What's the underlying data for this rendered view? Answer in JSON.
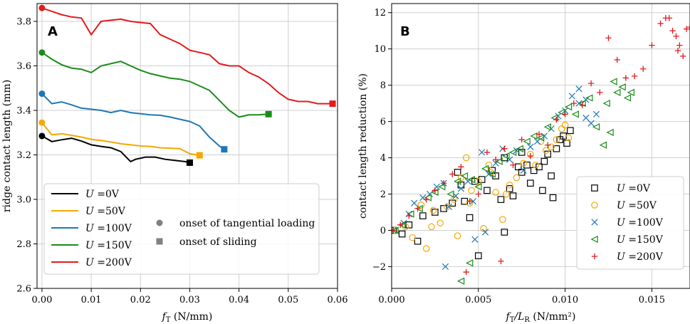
{
  "colors": {
    "0V": "#000000",
    "50V": "#f5a800",
    "100V": "#1f77b4",
    "150V": "#1a8c1a",
    "200V": "#e41a1c"
  },
  "chart_data": [
    {
      "type": "line",
      "panel_label": "A",
      "xlabel_main": "f",
      "xlabel_sub": "T",
      "xlabel_unit": " (N/mm)",
      "ylabel": "ridge contact length (mm)",
      "xlim": [
        -0.001,
        0.06
      ],
      "ylim": [
        2.6,
        3.88
      ],
      "xticks": [
        "0.00",
        "0.01",
        "0.02",
        "0.03",
        "0.04",
        "0.05",
        "0.06"
      ],
      "xtick_values": [
        0,
        0.01,
        0.02,
        0.03,
        0.04,
        0.05,
        0.06
      ],
      "yticks": [
        "2.6",
        "2.8",
        "3.0",
        "3.2",
        "3.4",
        "3.6",
        "3.8"
      ],
      "ytick_values": [
        2.6,
        2.8,
        3.0,
        3.2,
        3.4,
        3.6,
        3.8
      ],
      "legend": {
        "placement": "lower-left",
        "prefix": "U",
        "entries": [
          "=0V",
          "=50V",
          "=100V",
          "=150V",
          "=200V"
        ],
        "marker_entries": [
          "onset of tangential loading",
          "onset of sliding"
        ]
      },
      "series": [
        {
          "name": "U =0V",
          "key": "0V",
          "x": [
            0,
            0.002,
            0.004,
            0.006,
            0.008,
            0.01,
            0.012,
            0.014,
            0.016,
            0.018,
            0.019,
            0.021,
            0.023,
            0.025,
            0.027,
            0.029,
            0.03
          ],
          "y": [
            3.285,
            3.26,
            3.268,
            3.275,
            3.262,
            3.245,
            3.238,
            3.232,
            3.215,
            3.17,
            3.18,
            3.19,
            3.19,
            3.18,
            3.175,
            3.17,
            3.165
          ]
        },
        {
          "name": "U =50V",
          "key": "50V",
          "x": [
            0,
            0.002,
            0.004,
            0.006,
            0.008,
            0.01,
            0.012,
            0.014,
            0.016,
            0.018,
            0.02,
            0.022,
            0.024,
            0.026,
            0.028,
            0.03,
            0.032
          ],
          "y": [
            3.345,
            3.29,
            3.295,
            3.288,
            3.28,
            3.27,
            3.265,
            3.258,
            3.25,
            3.245,
            3.24,
            3.238,
            3.232,
            3.23,
            3.228,
            3.205,
            3.198
          ]
        },
        {
          "name": "U =100V",
          "key": "100V",
          "x": [
            0,
            0.002,
            0.004,
            0.006,
            0.008,
            0.01,
            0.012,
            0.014,
            0.016,
            0.018,
            0.02,
            0.022,
            0.024,
            0.026,
            0.028,
            0.03,
            0.032,
            0.034,
            0.036,
            0.037
          ],
          "y": [
            3.475,
            3.43,
            3.438,
            3.425,
            3.41,
            3.405,
            3.4,
            3.39,
            3.4,
            3.39,
            3.385,
            3.38,
            3.378,
            3.37,
            3.36,
            3.35,
            3.33,
            3.28,
            3.24,
            3.225
          ]
        },
        {
          "name": "U =150V",
          "key": "150V",
          "x": [
            0,
            0.002,
            0.004,
            0.006,
            0.008,
            0.01,
            0.012,
            0.014,
            0.016,
            0.018,
            0.02,
            0.022,
            0.024,
            0.026,
            0.028,
            0.03,
            0.032,
            0.034,
            0.036,
            0.038,
            0.04,
            0.042,
            0.044,
            0.046
          ],
          "y": [
            3.66,
            3.63,
            3.605,
            3.59,
            3.585,
            3.57,
            3.6,
            3.61,
            3.62,
            3.6,
            3.58,
            3.565,
            3.555,
            3.545,
            3.54,
            3.53,
            3.51,
            3.49,
            3.445,
            3.4,
            3.37,
            3.38,
            3.38,
            3.383
          ]
        },
        {
          "name": "U =200V",
          "key": "200V",
          "x": [
            0,
            0.002,
            0.004,
            0.006,
            0.008,
            0.01,
            0.012,
            0.014,
            0.016,
            0.018,
            0.02,
            0.022,
            0.024,
            0.026,
            0.028,
            0.03,
            0.032,
            0.034,
            0.036,
            0.038,
            0.04,
            0.042,
            0.044,
            0.046,
            0.048,
            0.05,
            0.052,
            0.054,
            0.056,
            0.058,
            0.059
          ],
          "y": [
            3.86,
            3.845,
            3.83,
            3.82,
            3.815,
            3.74,
            3.8,
            3.805,
            3.81,
            3.8,
            3.795,
            3.79,
            3.74,
            3.72,
            3.7,
            3.67,
            3.66,
            3.65,
            3.61,
            3.6,
            3.6,
            3.57,
            3.55,
            3.52,
            3.48,
            3.45,
            3.44,
            3.44,
            3.43,
            3.43,
            3.43
          ]
        }
      ]
    },
    {
      "type": "scatter",
      "panel_label": "B",
      "xlabel_main": "f",
      "xlabel_sub": "T",
      "xlabel_div": "/L",
      "xlabel_sub2": "R",
      "xlabel_unit": " (N/mm²)",
      "ylabel": "contact length reduction (%)",
      "xlim": [
        0,
        0.0172
      ],
      "ylim": [
        -3.2,
        12.5
      ],
      "xticks": [
        "0.000",
        "0.005",
        "0.010",
        "0.015"
      ],
      "xtick_values": [
        0,
        0.005,
        0.01,
        0.015
      ],
      "yticks": [
        "−2",
        "0",
        "2",
        "4",
        "6",
        "8",
        "10",
        "12"
      ],
      "ytick_values": [
        -2,
        0,
        2,
        4,
        6,
        8,
        10,
        12
      ],
      "legend": {
        "placement": "lower-right",
        "prefix": "U",
        "entries": [
          "=0V",
          "=50V",
          "=100V",
          "=150V",
          "=200V"
        ]
      },
      "series": [
        {
          "name": "U =0V",
          "key": "0V",
          "marker": "square",
          "x": [
            0.0001,
            0.0006,
            0.001,
            0.0015,
            0.0018,
            0.0025,
            0.003,
            0.0035,
            0.0038,
            0.004,
            0.0045,
            0.005,
            0.0052,
            0.0055,
            0.006,
            0.0063,
            0.0065,
            0.0068,
            0.007,
            0.0073,
            0.0075,
            0.0078,
            0.008,
            0.0082,
            0.0085,
            0.0088,
            0.009,
            0.0092,
            0.0095,
            0.0097,
            0.0099,
            0.0101,
            0.0103,
            0.0075,
            0.0065,
            0.0058,
            0.0048,
            0.0042,
            0.0087,
            0.0093
          ],
          "y": [
            0,
            -0.2,
            0.3,
            -0.6,
            0.8,
            1.0,
            1.2,
            1.5,
            3.2,
            2.5,
            0.7,
            -1.4,
            2.8,
            2.2,
            3.0,
            1.7,
            -0.1,
            2.3,
            1.9,
            3.5,
            3.2,
            3.6,
            2.6,
            3.3,
            3.5,
            3.8,
            4.2,
            3.0,
            4.5,
            5.0,
            5.2,
            4.8,
            5.5,
            4.3,
            4.0,
            3.3,
            2.7,
            1.6,
            2.2,
            1.8
          ]
        },
        {
          "name": "U =50V",
          "key": "50V",
          "marker": "circle",
          "x": [
            0.0002,
            0.0008,
            0.0012,
            0.0017,
            0.002,
            0.0024,
            0.0028,
            0.0032,
            0.0036,
            0.004,
            0.0043,
            0.0046,
            0.005,
            0.0053,
            0.0057,
            0.006,
            0.0064,
            0.0068,
            0.0072,
            0.0076,
            0.008,
            0.0083,
            0.0086,
            0.0089,
            0.0092,
            0.0095,
            0.0098,
            0.01,
            0.0102,
            0.0066,
            0.0056,
            0.0045,
            0.0038,
            0.0023
          ],
          "y": [
            0,
            0.2,
            -0.4,
            1.4,
            -1.0,
            1.1,
            0.4,
            1.3,
            1.7,
            2.9,
            4.0,
            2.2,
            2.7,
            0.1,
            3.2,
            2.1,
            0.6,
            2.5,
            2.9,
            3.7,
            4.2,
            3.6,
            4.9,
            4.4,
            4.6,
            5.0,
            5.6,
            5.8,
            5.1,
            2.0,
            3.6,
            1.5,
            -0.3,
            0.2
          ]
        },
        {
          "name": "U =100V",
          "key": "100V",
          "marker": "x",
          "x": [
            0.0001,
            0.0007,
            0.001,
            0.0013,
            0.0018,
            0.0022,
            0.0026,
            0.003,
            0.0033,
            0.0037,
            0.004,
            0.0044,
            0.0048,
            0.0052,
            0.0056,
            0.006,
            0.0064,
            0.0068,
            0.0072,
            0.0076,
            0.008,
            0.0084,
            0.0088,
            0.0092,
            0.0096,
            0.01,
            0.0104,
            0.0108,
            0.0112,
            0.0115,
            0.0118,
            0.0112,
            0.0108,
            0.0054,
            0.0047,
            0.0031
          ],
          "y": [
            0,
            0.4,
            0.9,
            1.5,
            1.8,
            2.0,
            2.4,
            2.6,
            1.3,
            1.9,
            2.3,
            2.7,
            -0.5,
            4.3,
            3.1,
            3.7,
            4.5,
            3.9,
            4.4,
            3.3,
            4.6,
            4.9,
            5.2,
            5.6,
            6.3,
            6.6,
            7.4,
            7.8,
            6.2,
            5.9,
            6.4,
            7.2,
            7.0,
            -0.1,
            1.6,
            -2.0
          ]
        },
        {
          "name": "U =150V",
          "key": "150V",
          "marker": "triangle-left",
          "x": [
            0.0002,
            0.0006,
            0.0011,
            0.0016,
            0.0021,
            0.0025,
            0.0029,
            0.0034,
            0.0038,
            0.0042,
            0.0046,
            0.005,
            0.0054,
            0.0058,
            0.0062,
            0.0066,
            0.007,
            0.0074,
            0.0078,
            0.0082,
            0.0086,
            0.009,
            0.0094,
            0.0098,
            0.0102,
            0.0106,
            0.011,
            0.0114,
            0.0118,
            0.0122,
            0.0126,
            0.013,
            0.0133,
            0.0136,
            0.0138,
            0.0128,
            0.0124,
            0.004,
            0.0045
          ],
          "y": [
            0,
            0.3,
            0.9,
            1.2,
            1.8,
            2.1,
            2.4,
            2.0,
            2.7,
            3.0,
            2.8,
            2.4,
            3.4,
            3.1,
            3.8,
            4.1,
            4.3,
            4.5,
            4.9,
            5.2,
            5.1,
            5.7,
            6.2,
            6.5,
            6.8,
            6.4,
            7.0,
            7.3,
            5.7,
            4.7,
            5.4,
            7.6,
            7.9,
            7.3,
            7.6,
            8.2,
            7.0,
            -2.8,
            -1.8
          ]
        },
        {
          "name": "U =200V",
          "key": "200V",
          "marker": "plus",
          "x": [
            0.0001,
            0.0005,
            0.001,
            0.0015,
            0.002,
            0.0025,
            0.003,
            0.0035,
            0.004,
            0.0045,
            0.005,
            0.0055,
            0.006,
            0.0065,
            0.007,
            0.0075,
            0.008,
            0.0085,
            0.009,
            0.0095,
            0.01,
            0.0105,
            0.011,
            0.0115,
            0.012,
            0.0125,
            0.013,
            0.0135,
            0.014,
            0.0145,
            0.015,
            0.0155,
            0.0158,
            0.016,
            0.0162,
            0.0164,
            0.0166,
            0.0168,
            0.017,
            0.0172,
            0.0165,
            0.0063,
            0.0043
          ],
          "y": [
            0,
            0.3,
            0.8,
            1.2,
            1.7,
            2.2,
            2.6,
            3.1,
            3.5,
            1.6,
            2.0,
            4.3,
            3.9,
            4.5,
            3.6,
            5.0,
            4.1,
            5.3,
            4.7,
            6.1,
            6.4,
            7.0,
            6.9,
            8.1,
            7.6,
            10.6,
            9.4,
            8.4,
            8.5,
            8.9,
            10.2,
            11.4,
            11.7,
            11.7,
            11.0,
            10.7,
            10.2,
            9.6,
            11.1,
            11.2,
            9.9,
            -1.7,
            -2.3
          ]
        }
      ]
    }
  ]
}
